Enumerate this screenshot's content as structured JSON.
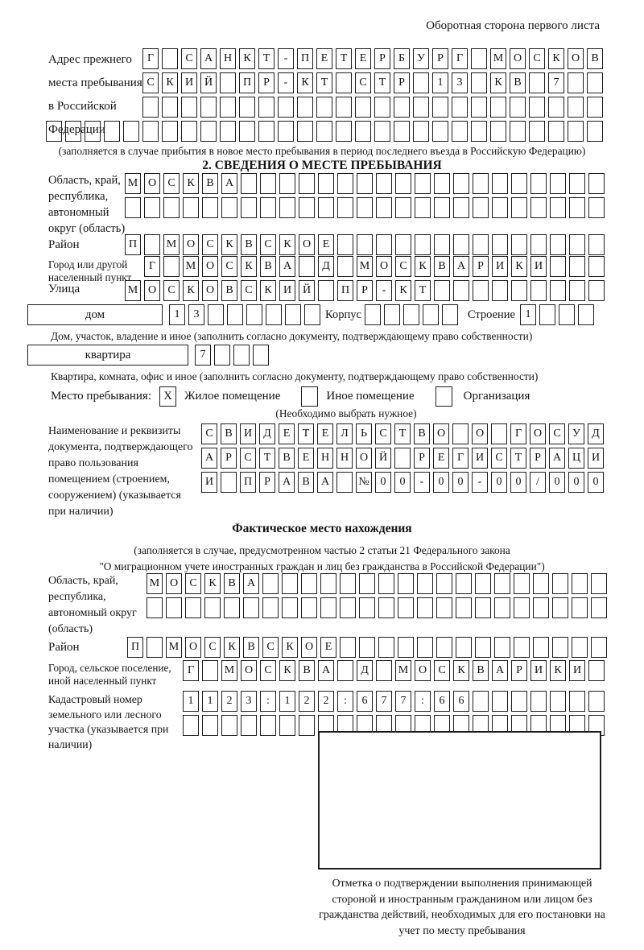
{
  "page": {
    "side_note": "Оборотная сторона первого листа"
  },
  "prev_address": {
    "label": "Адрес прежнего места пребывания в Российской Федерации",
    "row1": {
      "chars": "Г САНКТ-ПЕТЕРБУРГ МОСКОВ",
      "len": 24
    },
    "row2": {
      "chars": "СКИЙ ПР-КТ СТР 13 КВ 7",
      "len": 24
    },
    "row3": {
      "chars": "",
      "len": 24
    },
    "row4": {
      "chars": "",
      "len": 29
    },
    "note": "(заполняется в случае прибытия в новое место пребывания в период последнего въезда в Российскую Федерацию)"
  },
  "section2": {
    "title": "2. СВЕДЕНИЯ О МЕСТЕ ПРЕБЫВАНИЯ",
    "region": {
      "label": "Область, край, республика, автономный округ (область)",
      "row1": {
        "chars": "МОСКВА",
        "len": 25
      },
      "row2": {
        "chars": "",
        "len": 25
      }
    },
    "district": {
      "label": "Район",
      "row": {
        "chars": "П МОСКВСКОЕ",
        "len": 25
      }
    },
    "city": {
      "label": "Город или другой населенный пункт",
      "row": {
        "chars": "Г МОСКВА Д МОСКВАРИКИ",
        "len": 24
      }
    },
    "street": {
      "label": "Улица",
      "row": {
        "chars": "МОСКОВСКИЙ ПР-КТ",
        "len": 25
      }
    },
    "house": {
      "box_label": "дом",
      "cells": {
        "chars": "13",
        "len": 8
      },
      "korpus_label": "Корпус",
      "korpus_cells": {
        "chars": "",
        "len": 5
      },
      "stroenie_label": "Строение",
      "stroenie_cells": {
        "chars": "1",
        "len": 4
      },
      "note": "Дом, участок, владение и иное (заполнить согласно документу, подтверждающему право собственности)"
    },
    "apartment": {
      "box_label": "квартира",
      "cells": {
        "chars": "7",
        "len": 4
      },
      "note": "Квартира, комната, офис и иное (заполнить согласно документу, подтверждающему право собственности)"
    },
    "stay_type": {
      "label": "Место пребывания:",
      "options": [
        {
          "label": "Жилое помещение",
          "checked": "X"
        },
        {
          "label": "Иное помещение",
          "checked": ""
        },
        {
          "label": "Организация",
          "checked": ""
        }
      ],
      "note": "(Необходимо выбрать нужное)"
    },
    "document": {
      "label": "Наименование и реквизиты документа, подтверждающего право пользования помещением (строением, сооружением) (указывается при наличии)",
      "row1": {
        "chars": "СВИДЕТЕЛЬСТВО О ГОСУД",
        "len": 21
      },
      "row2": {
        "chars": "АРСТВЕННОЙ РЕГИСТРАЦИ",
        "len": 21
      },
      "row3": {
        "chars": "И ПРАВА №00-00-00/000",
        "len": 21
      }
    }
  },
  "actual_location": {
    "title": "Фактическое место нахождения",
    "note_line1": "(заполняется в случае, предусмотренном частью 2 статьи 21 Федерального закона",
    "note_line2": "\"О миграционном учете иностранных граждан и лиц без гражданства в Российской Федерации\")",
    "region": {
      "label": "Область, край, республика, автономный округ (область)",
      "row1": {
        "chars": "МОСКВА",
        "len": 24
      },
      "row2": {
        "chars": "",
        "len": 24
      }
    },
    "district": {
      "label": "Район",
      "row": {
        "chars": "П МОСКВСКОЕ",
        "len": 25
      }
    },
    "city": {
      "label": "Город, сельское поселение, иной населенный пункт",
      "row": {
        "chars": "Г МОСКВА Д МОСКВАРИКИ",
        "len": 22
      }
    },
    "cadastre": {
      "label": "Кадастровый номер земельного или лесного участка (указывается при наличии)",
      "row1": {
        "chars": "1123:122:677:66",
        "len": 22
      },
      "row2": {
        "chars": "",
        "len": 22
      }
    },
    "stamp_caption": "Отметка о подтверждении выполнения принимающей стороной и иностранным гражданином или лицом без гражданства действий, необходимых для его постановки на учет по месту пребывания"
  }
}
